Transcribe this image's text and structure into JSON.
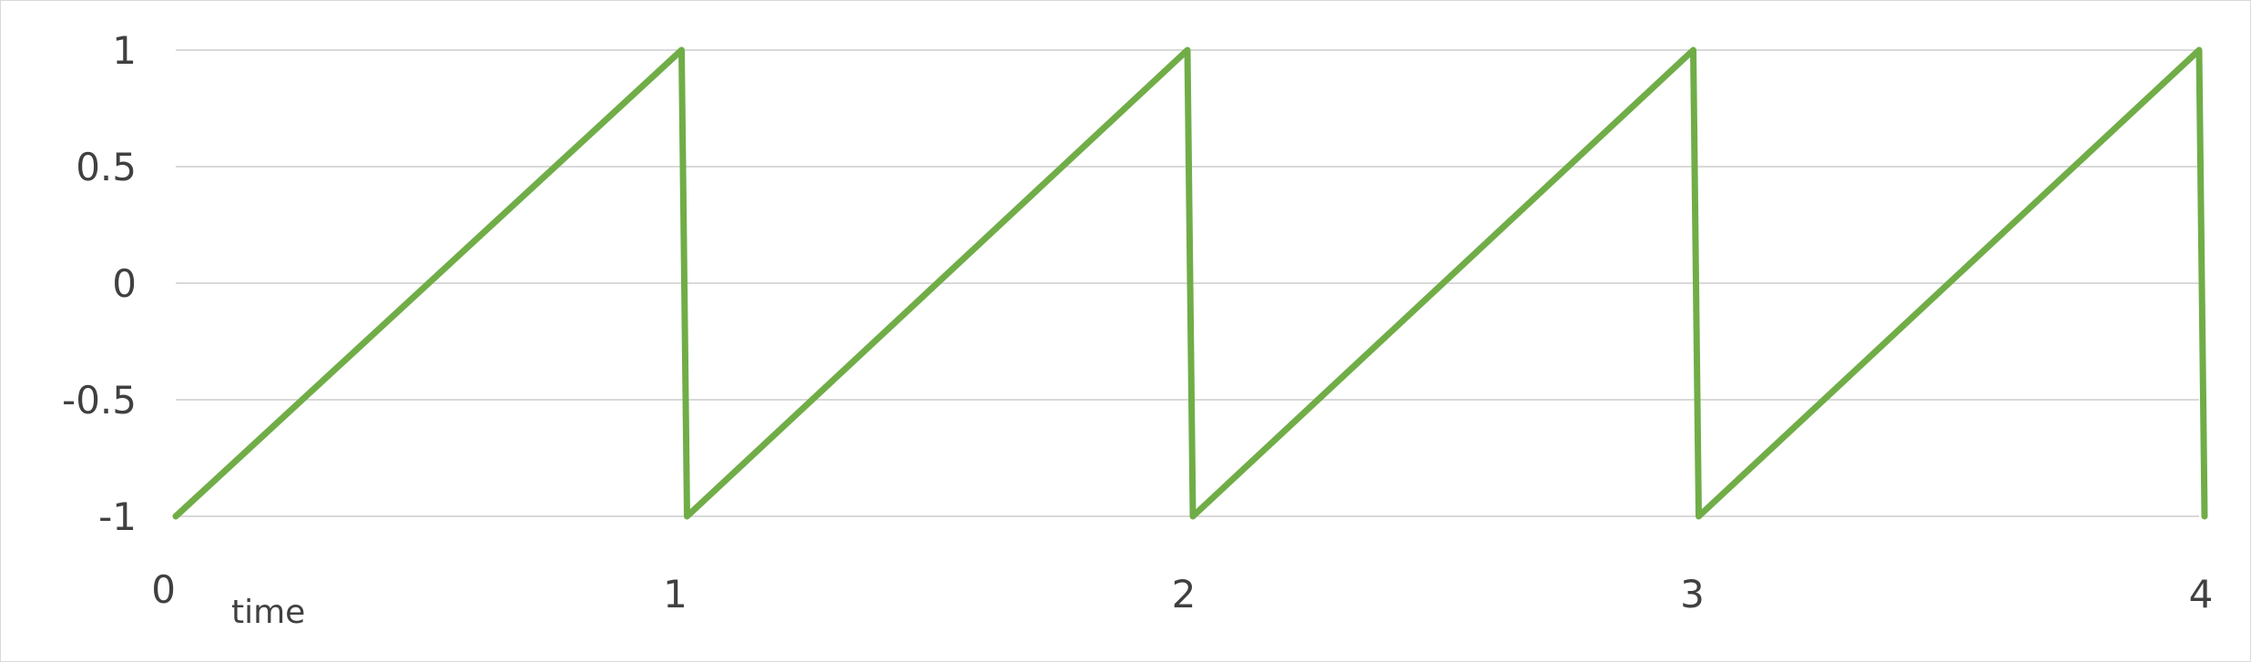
{
  "chart_data": {
    "type": "line",
    "title": "",
    "xlabel": "time",
    "ylabel": "",
    "xlim": [
      0,
      4
    ],
    "ylim": [
      -1,
      1
    ],
    "x_ticks": [
      0,
      1,
      2,
      3,
      4
    ],
    "y_ticks": [
      -1,
      -0.5,
      0,
      0.5,
      1
    ],
    "x_tick_labels": [
      "0",
      "1",
      "2",
      "3",
      "4"
    ],
    "y_tick_labels": [
      "-1",
      "-0.5",
      "0",
      "0.5",
      "1"
    ],
    "grid": "horizontal",
    "legend": "none",
    "series": [
      {
        "color": "#70ad47",
        "x": [
          0,
          1,
          1,
          2,
          2,
          3,
          3,
          4,
          4
        ],
        "y": [
          -1,
          1,
          -1,
          1,
          -1,
          1,
          -1,
          1,
          -1
        ]
      }
    ]
  }
}
